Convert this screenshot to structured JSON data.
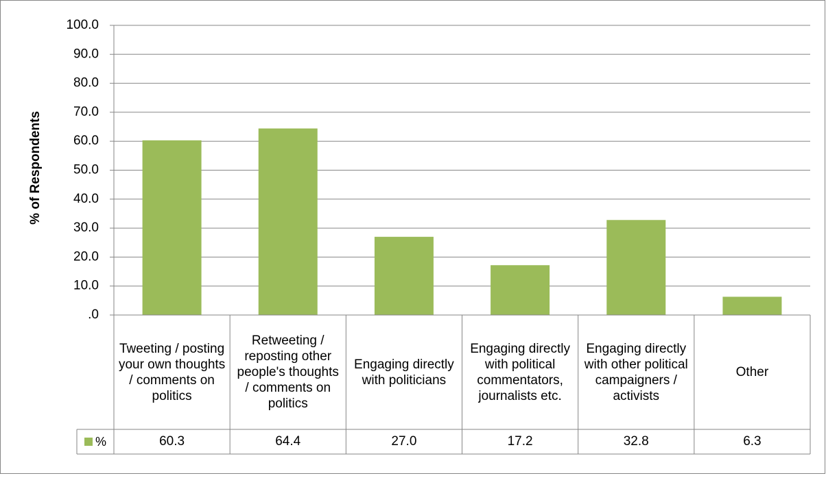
{
  "chart_data": {
    "type": "bar",
    "ylabel": "% of Respondents",
    "ylim": [
      0,
      100
    ],
    "yticks": [
      ".0",
      "10.0",
      "20.0",
      "30.0",
      "40.0",
      "50.0",
      "60.0",
      "70.0",
      "80.0",
      "90.0",
      "100.0"
    ],
    "categories": [
      "Tweeting / posting your own thoughts / comments on politics",
      "Retweeting / reposting other people's thoughts / comments on politics",
      "Engaging directly with politicians",
      "Engaging directly with political commentators, journalists etc.",
      "Engaging directly with other political campaigners / activists",
      "Other"
    ],
    "series": [
      {
        "name": "%",
        "values": [
          60.3,
          64.4,
          27.0,
          17.2,
          32.8,
          6.3
        ],
        "labels": [
          "60.3",
          "64.4",
          "27.0",
          "17.2",
          "32.8",
          "6.3"
        ]
      }
    ],
    "colors": {
      "bar": "#9bbb59",
      "grid": "#868686",
      "border": "#868686"
    },
    "grid": true,
    "legend": "data-table"
  }
}
